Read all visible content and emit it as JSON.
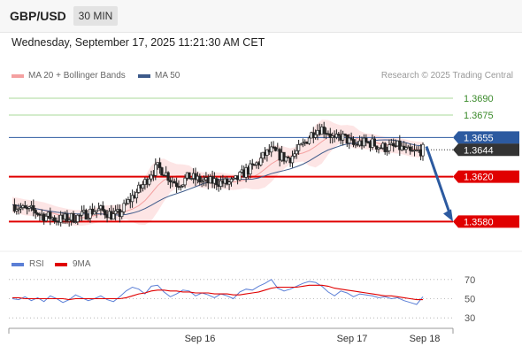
{
  "header": {
    "symbol": "GBP/USD",
    "timeframe": "30 MIN"
  },
  "timestamp": "Wednesday, September 17, 2025 11:21:30 AM CET",
  "legend": {
    "bb_label": "MA 20 + Bollinger Bands",
    "ma50_label": "MA 50",
    "rsi_label": "RSI",
    "rsi_ma_label": "9MA",
    "credit": "Research © 2025 Trading Central"
  },
  "colors": {
    "bb": "#f4a0a0",
    "bb_fill": "#fde0e0",
    "ma50": "#3d5a8a",
    "candle": "#222222",
    "support": "#e00000",
    "resistance": "#a8d89a",
    "pivot": "#2c5aa0",
    "rsi": "#5b7fd6",
    "rsi_ma": "#e00000",
    "arrow": "#2c5aa0"
  },
  "chart_data": [
    {
      "type": "candlestick",
      "x_ticks": [
        "Sep 16",
        "Sep 17",
        "Sep 18"
      ],
      "ylim": [
        1.3555,
        1.3705
      ],
      "levels": [
        {
          "value": 1.369,
          "label": "1.3690",
          "kind": "resistance"
        },
        {
          "value": 1.3675,
          "label": "1.3675",
          "kind": "resistance"
        },
        {
          "value": 1.3655,
          "label": "1.3655",
          "kind": "pivot"
        },
        {
          "value": 1.362,
          "label": "1.3620",
          "kind": "support"
        },
        {
          "value": 1.358,
          "label": "1.3580",
          "kind": "support"
        }
      ],
      "last_price": {
        "value": 1.3644,
        "label": "1.3644"
      },
      "close_path": [
        1.3595,
        1.3593,
        1.359,
        1.359,
        1.3588,
        1.3585,
        1.3584,
        1.3582,
        1.3582,
        1.3583,
        1.3584,
        1.3585,
        1.3588,
        1.359,
        1.359,
        1.3588,
        1.3585,
        1.3587,
        1.3595,
        1.3602,
        1.3608,
        1.3615,
        1.3624,
        1.3628,
        1.3625,
        1.3618,
        1.3614,
        1.3616,
        1.362,
        1.3618,
        1.3616,
        1.3615,
        1.3616,
        1.3615,
        1.3614,
        1.3615,
        1.362,
        1.3625,
        1.3628,
        1.3633,
        1.364,
        1.3643,
        1.364,
        1.3637,
        1.3637,
        1.3642,
        1.3648,
        1.3656,
        1.3662,
        1.3663,
        1.366,
        1.3652,
        1.3656,
        1.3653,
        1.3648,
        1.365,
        1.365,
        1.365,
        1.3647,
        1.3646,
        1.3646,
        1.3647,
        1.3644,
        1.3641,
        1.3642,
        1.3644
      ],
      "projection": {
        "from": 1.3647,
        "to": 1.358
      }
    },
    {
      "type": "line",
      "name": "RSI",
      "ylim": [
        20,
        80
      ],
      "y_ticks": [
        70,
        50,
        30
      ],
      "series": [
        {
          "name": "RSI",
          "values": [
            50,
            49,
            52,
            48,
            51,
            47,
            53,
            50,
            46,
            49,
            54,
            51,
            48,
            50,
            53,
            49,
            47,
            52,
            58,
            62,
            60,
            55,
            63,
            64,
            57,
            52,
            55,
            59,
            58,
            53,
            56,
            54,
            51,
            55,
            53,
            50,
            57,
            60,
            59,
            63,
            66,
            70,
            61,
            58,
            60,
            63,
            66,
            68,
            67,
            63,
            57,
            53,
            58,
            56,
            52,
            55,
            54,
            53,
            51,
            52,
            50,
            51,
            48,
            46,
            44,
            52
          ]
        },
        {
          "name": "9MA",
          "values": [
            51,
            51,
            50,
            50,
            50,
            50,
            50,
            50,
            50,
            49,
            50,
            50,
            50,
            50,
            50,
            50,
            50,
            50,
            51,
            53,
            55,
            56,
            58,
            59,
            59,
            58,
            58,
            57,
            57,
            56,
            56,
            56,
            55,
            55,
            55,
            54,
            54,
            55,
            56,
            57,
            59,
            61,
            62,
            62,
            62,
            62,
            63,
            64,
            64,
            64,
            63,
            61,
            60,
            59,
            58,
            57,
            56,
            55,
            54,
            53,
            53,
            52,
            51,
            50,
            49,
            49
          ]
        }
      ]
    }
  ]
}
